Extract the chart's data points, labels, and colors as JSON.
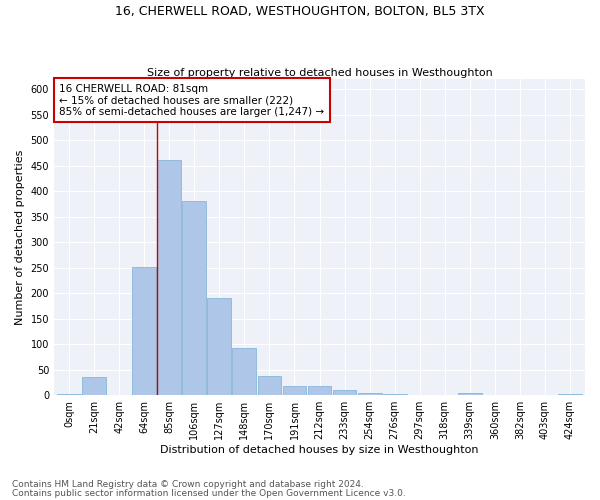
{
  "title": "16, CHERWELL ROAD, WESTHOUGHTON, BOLTON, BL5 3TX",
  "subtitle": "Size of property relative to detached houses in Westhoughton",
  "xlabel": "Distribution of detached houses by size in Westhoughton",
  "ylabel": "Number of detached properties",
  "categories": [
    "0sqm",
    "21sqm",
    "42sqm",
    "64sqm",
    "85sqm",
    "106sqm",
    "127sqm",
    "148sqm",
    "170sqm",
    "191sqm",
    "212sqm",
    "233sqm",
    "254sqm",
    "276sqm",
    "297sqm",
    "318sqm",
    "339sqm",
    "360sqm",
    "382sqm",
    "403sqm",
    "424sqm"
  ],
  "values": [
    3,
    36,
    0,
    252,
    460,
    380,
    190,
    92,
    37,
    18,
    18,
    11,
    4,
    2,
    0,
    0,
    5,
    0,
    0,
    0,
    2
  ],
  "bar_color": "#aec6e8",
  "bar_edge_color": "#7aafd4",
  "vline_x_index": 4,
  "vline_color": "#cc0000",
  "annotation_line1": "16 CHERWELL ROAD: 81sqm",
  "annotation_line2": "← 15% of detached houses are smaller (222)",
  "annotation_line3": "85% of semi-detached houses are larger (1,247) →",
  "annotation_box_color": "#ffffff",
  "annotation_box_edge_color": "#cc0000",
  "ylim": [
    0,
    620
  ],
  "yticks": [
    0,
    50,
    100,
    150,
    200,
    250,
    300,
    350,
    400,
    450,
    500,
    550,
    600
  ],
  "footer1": "Contains HM Land Registry data © Crown copyright and database right 2024.",
  "footer2": "Contains public sector information licensed under the Open Government Licence v3.0.",
  "bg_color": "#eef2f8",
  "grid_color": "#ffffff",
  "title_fontsize": 9,
  "subtitle_fontsize": 8,
  "xlabel_fontsize": 8,
  "ylabel_fontsize": 8,
  "tick_fontsize": 7,
  "annotation_fontsize": 7.5,
  "footer_fontsize": 6.5
}
